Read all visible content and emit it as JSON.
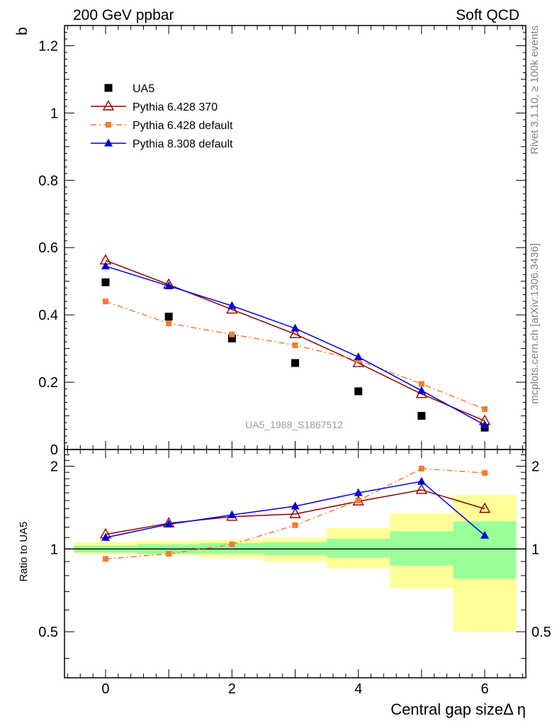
{
  "header": {
    "left": "200 GeV ppbar",
    "right": "Soft QCD"
  },
  "side_labels": {
    "rivet": "Rivet 3.1.10, ≥ 100k events",
    "mcplots": "mcplots.cern.ch [arXiv:1306.3436]"
  },
  "watermark": "UA5_1988_S1867512",
  "colors": {
    "data": "#000000",
    "py6_370": "#8b0000",
    "py6_default": "#f47c30",
    "py8_default": "#0000dd",
    "band_inner": "#99ff99",
    "band_outer": "#ffff99"
  },
  "chart_data": [
    {
      "type": "line",
      "panel": "main",
      "ylabel": "b",
      "xlim": [
        -0.65,
        6.65
      ],
      "ylim": [
        0,
        1.26
      ],
      "y_ticks": [
        "1.2",
        "1",
        "0.8",
        "0.6",
        "0.4",
        "0.2",
        "0"
      ],
      "y_tick_values": [
        1.2,
        1.0,
        0.8,
        0.6,
        0.4,
        0.2,
        0
      ],
      "x": [
        0,
        1,
        2,
        3,
        4,
        5,
        6
      ],
      "legend_position": "top-left",
      "series": [
        {
          "name": "UA5",
          "values": [
            0.497,
            0.395,
            0.33,
            0.257,
            0.173,
            0.1,
            0.065
          ]
        },
        {
          "name": "Pythia 6.428 370",
          "values": [
            0.562,
            0.49,
            0.416,
            0.343,
            0.257,
            0.165,
            0.085
          ]
        },
        {
          "name": "Pythia 6.428 default",
          "values": [
            0.44,
            0.375,
            0.342,
            0.31,
            0.265,
            0.195,
            0.12
          ]
        },
        {
          "name": "Pythia 8.308 default",
          "values": [
            0.545,
            0.486,
            0.427,
            0.36,
            0.275,
            0.175,
            0.073
          ]
        }
      ]
    },
    {
      "type": "line",
      "panel": "ratio",
      "ylabel": "Ratio to UA5",
      "xlabel": "Central gap sizeΔ η",
      "xlim": [
        -0.65,
        6.65
      ],
      "ylim": [
        0.34,
        2.3
      ],
      "y_scale": "log",
      "x_ticks": [
        "0",
        "2",
        "4",
        "6"
      ],
      "x_tick_values": [
        0,
        2,
        4,
        6
      ],
      "y_ticks": [
        "2",
        "1",
        "0.5"
      ],
      "y_tick_values": [
        2,
        1,
        0.5
      ],
      "x": [
        0,
        1,
        2,
        3,
        4,
        5,
        6
      ],
      "series": [
        {
          "name": "Pythia 6.428 370",
          "values": [
            1.13,
            1.24,
            1.31,
            1.34,
            1.49,
            1.64,
            1.4
          ]
        },
        {
          "name": "Pythia 6.428 default",
          "values": [
            0.92,
            0.96,
            1.04,
            1.22,
            1.5,
            1.96,
            1.89
          ]
        },
        {
          "name": "Pythia 8.308 default",
          "values": [
            1.1,
            1.23,
            1.33,
            1.43,
            1.6,
            1.76,
            1.12
          ]
        }
      ],
      "uncertainty_bands": {
        "inner": [
          [
            0.97,
            1.03
          ],
          [
            0.96,
            1.04
          ],
          [
            0.96,
            1.05
          ],
          [
            0.95,
            1.06
          ],
          [
            0.93,
            1.09
          ],
          [
            0.87,
            1.16
          ],
          [
            0.78,
            1.26
          ]
        ],
        "outer": [
          [
            0.96,
            1.06
          ],
          [
            0.95,
            1.07
          ],
          [
            0.93,
            1.08
          ],
          [
            0.9,
            1.1
          ],
          [
            0.85,
            1.19
          ],
          [
            0.72,
            1.35
          ],
          [
            0.5,
            1.57
          ]
        ]
      }
    }
  ]
}
